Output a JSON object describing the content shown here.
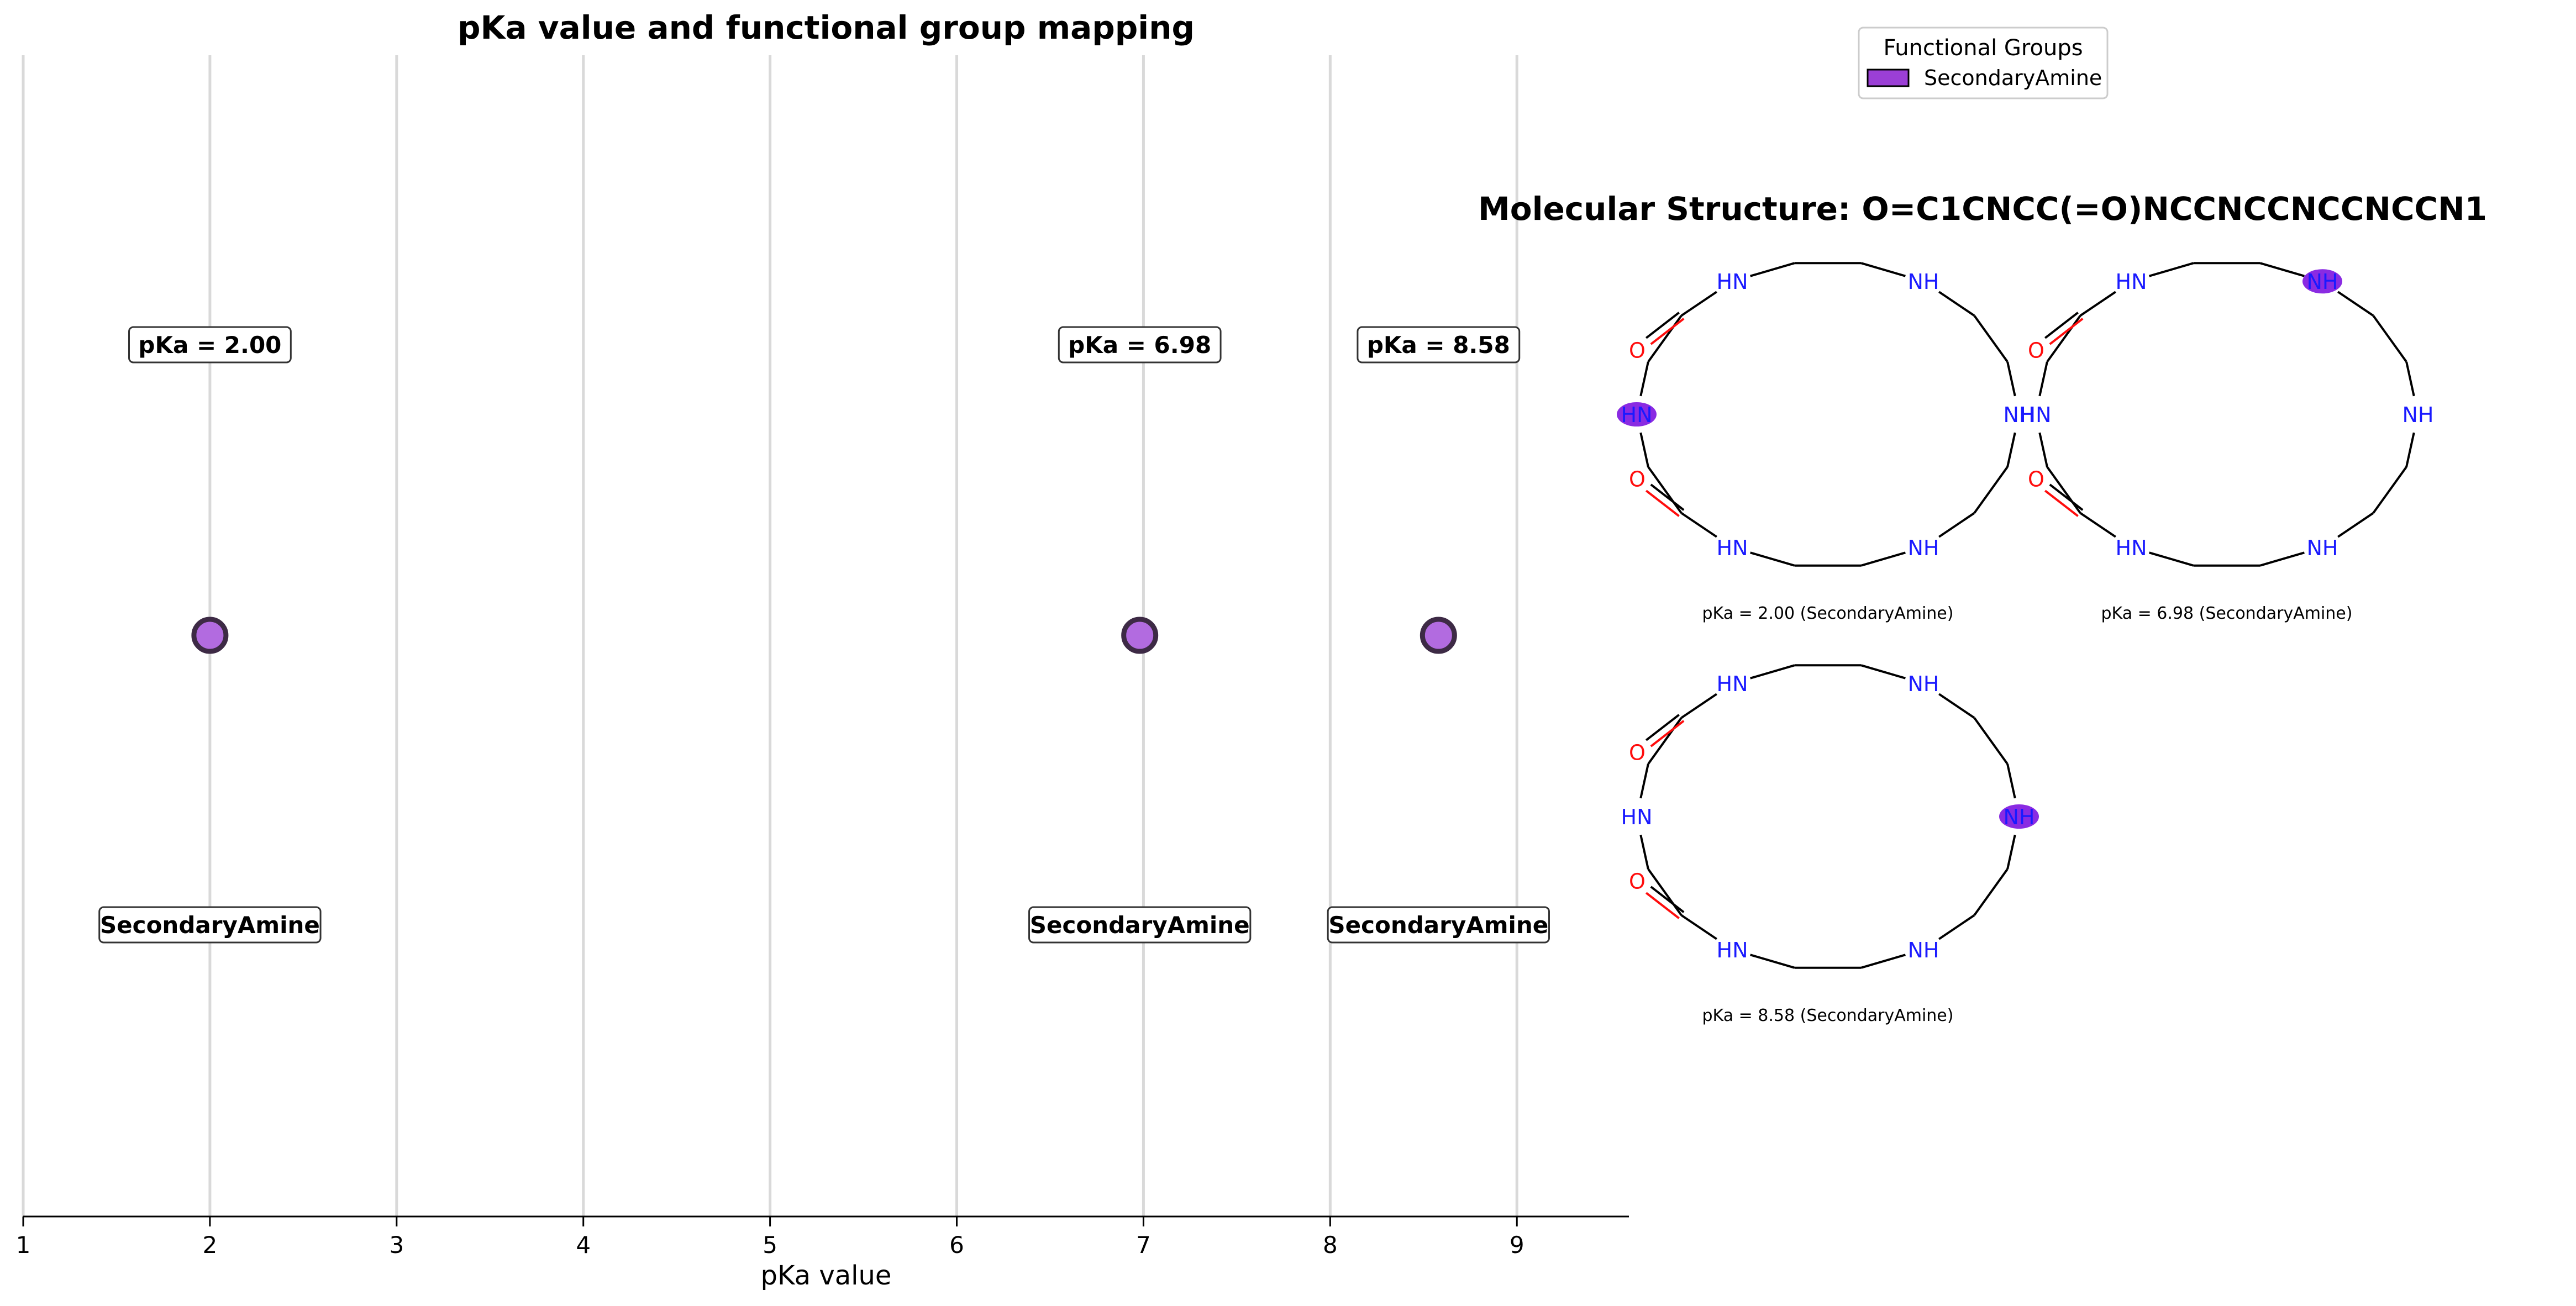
{
  "chart_data": {
    "type": "scatter",
    "title": "pKa value and functional group mapping",
    "xlabel": "pKa value",
    "xlim": [
      1,
      9.6
    ],
    "xticks": [
      1,
      2,
      3,
      4,
      5,
      6,
      7,
      8,
      9
    ],
    "grid": true,
    "points": [
      {
        "x": 2.0,
        "label": "pKa = 2.00",
        "group": "SecondaryAmine"
      },
      {
        "x": 6.98,
        "label": "pKa = 6.98",
        "group": "SecondaryAmine"
      },
      {
        "x": 8.58,
        "label": "pKa = 8.58",
        "group": "SecondaryAmine"
      }
    ],
    "legend": {
      "title": "Functional Groups",
      "placement": "top-right",
      "entries": [
        {
          "name": "SecondaryAmine",
          "color": "#9b3fd6"
        }
      ]
    }
  },
  "structures": {
    "title": "Molecular Structure: O=C1CNCC(=O)NCCNCCNCCNCCN1",
    "panels": [
      {
        "caption": "pKa = 2.00 (SecondaryAmine)",
        "highlight": "left"
      },
      {
        "caption": "pKa = 6.98 (SecondaryAmine)",
        "highlight": "top-right"
      },
      {
        "caption": "pKa = 8.58 (SecondaryAmine)",
        "highlight": "right"
      }
    ]
  },
  "colors": {
    "marker_fill": "#b26be0",
    "marker_edge": "#3d2a45",
    "highlight": "#8a2be2",
    "nitrogen": "#1a1aff",
    "oxygen": "#ff0d0d"
  }
}
